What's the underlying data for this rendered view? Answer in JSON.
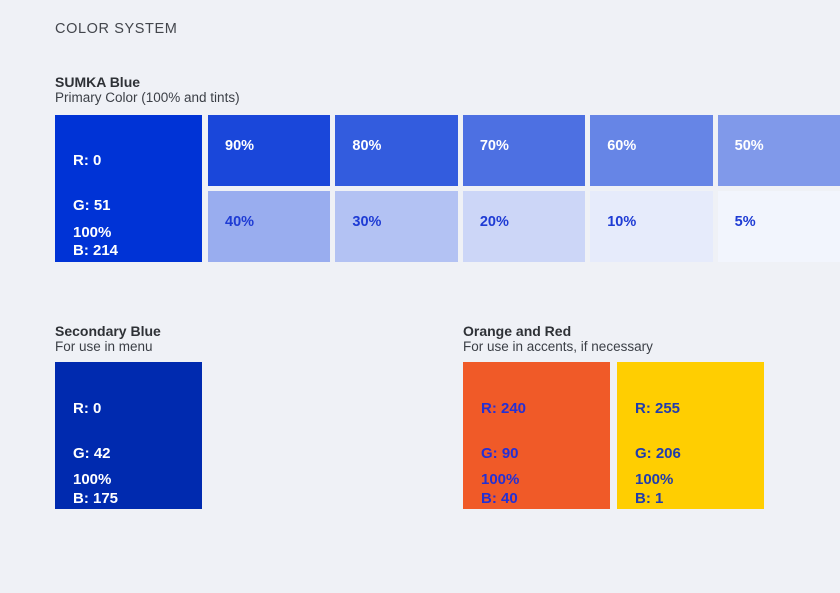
{
  "colors": {
    "page_bg": "#EFF1F6",
    "primary": "#0033D6",
    "secondary": "#002AAF",
    "orange": "#F05A28",
    "yellow": "#FFCE01",
    "tint_label_dark": "#1E3BD4",
    "white": "#FFFFFF"
  },
  "page": {
    "title": "COLOR SYSTEM"
  },
  "primary_section": {
    "heading": "SUMKA Blue",
    "subheading": "Primary Color (100% and tints)",
    "swatch": {
      "r": "R: 0",
      "g": "G: 51",
      "b": "B: 214",
      "percent": "100%",
      "hex": "#0033D6",
      "text_color": "#FFFFFF"
    },
    "tints_row1": [
      {
        "label": "90%",
        "hex": "#1A47DA",
        "text_color": "#FFFFFF"
      },
      {
        "label": "80%",
        "hex": "#335CDE",
        "text_color": "#FFFFFF"
      },
      {
        "label": "70%",
        "hex": "#4D70E2",
        "text_color": "#FFFFFF"
      },
      {
        "label": "60%",
        "hex": "#6685E6",
        "text_color": "#FFFFFF"
      },
      {
        "label": "50%",
        "hex": "#8099EA",
        "text_color": "#FFFFFF"
      }
    ],
    "tints_row2": [
      {
        "label": "40%",
        "hex": "#99ADEF",
        "text_color": "#1E3BD4"
      },
      {
        "label": "30%",
        "hex": "#B3C2F3",
        "text_color": "#1E3BD4"
      },
      {
        "label": "20%",
        "hex": "#CCD6F7",
        "text_color": "#1E3BD4"
      },
      {
        "label": "10%",
        "hex": "#E6EBFB",
        "text_color": "#1E3BD4"
      },
      {
        "label": "5%",
        "hex": "#F2F5FD",
        "text_color": "#1E3BD4"
      }
    ]
  },
  "secondary_section": {
    "heading": "Secondary Blue",
    "subheading": "For use in menu",
    "swatch": {
      "r": "R: 0",
      "g": "G: 42",
      "b": "B: 175",
      "percent": "100%",
      "hex": "#002AAF",
      "text_color": "#FFFFFF"
    }
  },
  "accent_section": {
    "heading": "Orange and Red",
    "subheading": "For use in accents, if necessary",
    "swatches": [
      {
        "r": "R: 240",
        "g": "G: 90",
        "b": "B: 40",
        "percent": "100%",
        "hex": "#F05A28",
        "text_color": "#2430D4"
      },
      {
        "r": "R: 255",
        "g": "G: 206",
        "b": "B: 1",
        "percent": "100%",
        "hex": "#FFCE01",
        "text_color": "#203CAE"
      }
    ]
  }
}
